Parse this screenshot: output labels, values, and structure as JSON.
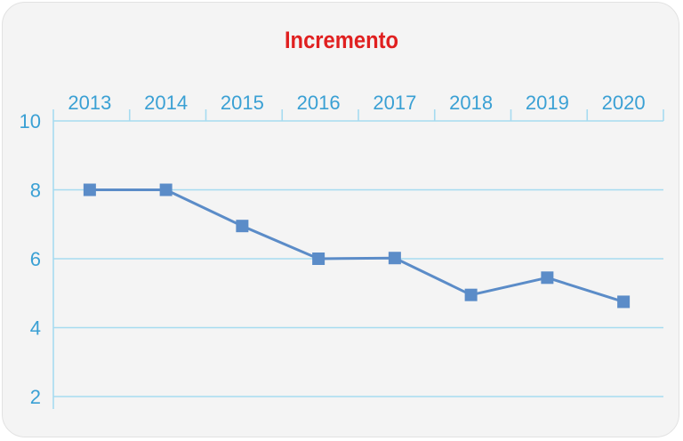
{
  "chart_data": {
    "type": "line",
    "title": "Incremento",
    "xlabel": "",
    "ylabel": "",
    "categories": [
      "2013",
      "2014",
      "2015",
      "2016",
      "2017",
      "2018",
      "2019",
      "2020"
    ],
    "series": [
      {
        "values": [
          8.0,
          8.0,
          6.95,
          6.0,
          6.02,
          4.95,
          5.45,
          4.75
        ]
      }
    ],
    "ylim": [
      2,
      10
    ],
    "yticks": [
      2,
      4,
      6,
      8,
      10
    ],
    "x_axis_position": "top",
    "grid": true,
    "colors": {
      "line": "#5b8cc8",
      "marker": "#5b8cc8",
      "grid": "#a6dbf0",
      "axis_text": "#3aa0d4",
      "title": "#e02020"
    }
  }
}
